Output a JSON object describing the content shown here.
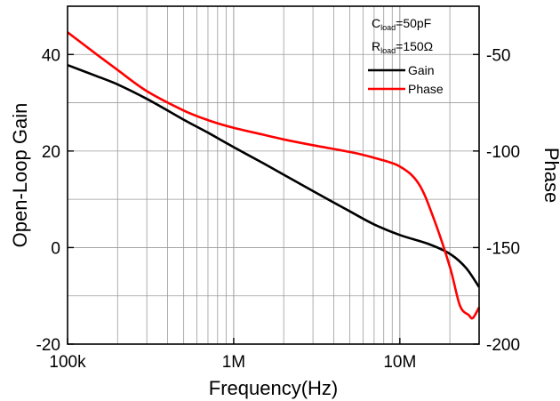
{
  "chart_data": {
    "type": "line",
    "x_scale": "log",
    "grid": true,
    "xlim": [
      100000,
      30000000
    ],
    "ylim_left": [
      -20,
      50
    ],
    "ylim_right": [
      -200,
      -25
    ],
    "xlabel": "Frequency(Hz)",
    "ylabel_left": "Open-Loop Gain",
    "ylabel_right": "Phase",
    "x_ticks": [
      {
        "value": 100000,
        "label": "100k"
      },
      {
        "value": 1000000,
        "label": "1M"
      },
      {
        "value": 10000000,
        "label": "10M"
      }
    ],
    "y_ticks_left": [
      {
        "value": 40,
        "label": "40"
      },
      {
        "value": 20,
        "label": "20"
      },
      {
        "value": 0,
        "label": "0"
      },
      {
        "value": -20,
        "label": "-20"
      }
    ],
    "y_ticks_right": [
      {
        "value": -50,
        "label": "-50"
      },
      {
        "value": -100,
        "label": "-100"
      },
      {
        "value": -150,
        "label": "-150"
      },
      {
        "value": -200,
        "label": "-200"
      }
    ],
    "legend": {
      "placement": "top-right",
      "conditions": [
        {
          "main": "C",
          "sub": "load",
          "value": "=50pF"
        },
        {
          "main": "R",
          "sub": "load",
          "value": "=150Ω"
        }
      ]
    },
    "series": [
      {
        "name": "Gain",
        "axis": "left",
        "color": "#000000",
        "x": [
          100000,
          150000,
          200000,
          300000,
          500000,
          700000,
          1000000,
          1500000,
          2000000,
          3000000,
          5000000,
          7000000,
          10000000,
          15000000,
          20000000,
          25000000,
          30000000
        ],
        "y": [
          37.8,
          35.5,
          33.8,
          30.8,
          26.5,
          23.8,
          20.8,
          17.5,
          15.1,
          11.7,
          7.5,
          4.8,
          2.6,
          0.7,
          -1.3,
          -4.2,
          -8.2
        ]
      },
      {
        "name": "Phase",
        "axis": "right",
        "color": "#ff0000",
        "x": [
          100000,
          150000,
          200000,
          300000,
          500000,
          700000,
          1000000,
          1500000,
          2000000,
          3000000,
          5000000,
          7000000,
          10000000,
          13000000,
          16000000,
          20000000,
          23000000,
          26000000,
          27500000,
          30000000
        ],
        "y": [
          -38.5,
          -50,
          -58,
          -69,
          -79,
          -84,
          -88,
          -91.5,
          -94,
          -97,
          -100.5,
          -103.5,
          -108,
          -117,
          -135,
          -160,
          -180,
          -185,
          -186.5,
          -181
        ]
      }
    ]
  }
}
